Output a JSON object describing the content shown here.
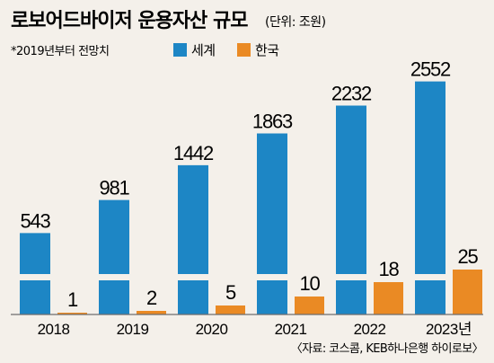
{
  "chart_data": {
    "type": "bar",
    "title": "로보어드바이저 운용자산 규모",
    "unit": "(단위: 조원)",
    "note": "*2019년부터 전망치",
    "categories": [
      "2018",
      "2019",
      "2020",
      "2021",
      "2022",
      "2023년"
    ],
    "series": [
      {
        "name": "세계",
        "values": [
          543,
          981,
          1442,
          1863,
          2232,
          2552
        ],
        "color": "#1d86c5"
      },
      {
        "name": "한국",
        "values": [
          1,
          2,
          5,
          10,
          18,
          25
        ],
        "color": "#ea8a24"
      }
    ],
    "value_labels": {
      "세계": [
        "543",
        "981",
        "1442",
        "1863",
        "2232",
        "2552"
      ],
      "한국": [
        "1",
        "2",
        "5",
        "10",
        "18",
        "25"
      ]
    },
    "axis_break": true,
    "legend_position": "top",
    "grid": false,
    "source": "〈자료: 코스콤, KEB하나은행 하이로보〉"
  }
}
